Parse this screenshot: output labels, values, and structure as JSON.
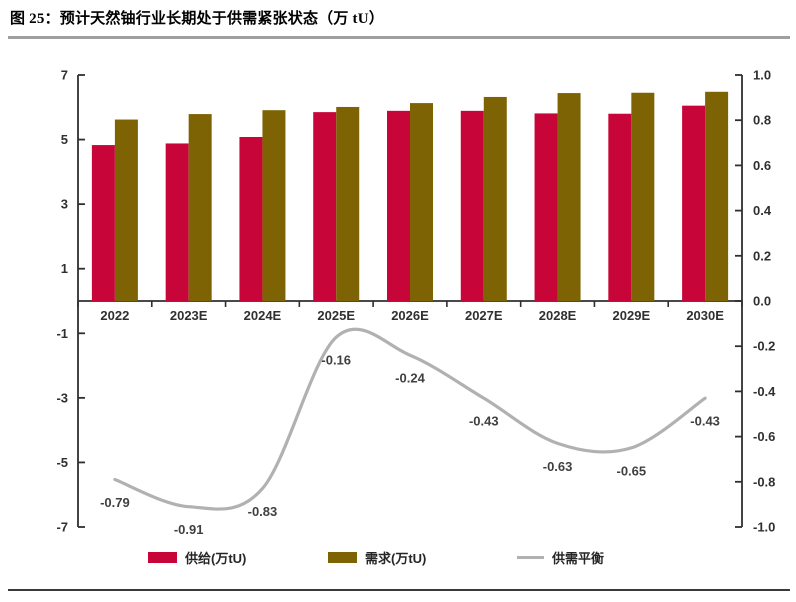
{
  "header": {
    "title": "图 25：预计天然铀行业长期处于供需紧张状态（万 tU）"
  },
  "chart_data": {
    "type": "combo-bar-line",
    "title": "预计天然铀行业长期处于供需紧张状态（万 tU）",
    "categories": [
      "2022",
      "2023E",
      "2024E",
      "2025E",
      "2026E",
      "2027E",
      "2028E",
      "2029E",
      "2030E"
    ],
    "series": [
      {
        "name": "供给(万tU)",
        "type": "bar",
        "axis": "left",
        "color": "#C80538",
        "values": [
          4.83,
          4.88,
          5.08,
          5.85,
          5.89,
          5.89,
          5.81,
          5.8,
          6.05
        ]
      },
      {
        "name": "需求(万tU)",
        "type": "bar",
        "axis": "left",
        "color": "#7D6304",
        "values": [
          5.62,
          5.79,
          5.91,
          6.01,
          6.13,
          6.32,
          6.44,
          6.45,
          6.48
        ]
      },
      {
        "name": "供需平衡",
        "type": "line",
        "axis": "right",
        "color": "#B1B1B1",
        "values": [
          -0.79,
          -0.91,
          -0.83,
          -0.16,
          -0.24,
          -0.43,
          -0.63,
          -0.65,
          -0.43
        ],
        "point_labels": [
          "-0.79",
          "-0.91",
          "-0.83",
          "-0.16",
          "-0.24",
          "-0.43",
          "-0.63",
          "-0.65",
          "-0.43"
        ]
      }
    ],
    "left_axis": {
      "min": -7,
      "max": 7,
      "tick_values": [
        7,
        5,
        3,
        1,
        -1,
        -3,
        -5,
        -7
      ],
      "tick_labels": [
        "7",
        "5",
        "3",
        "1",
        "-1",
        "-3",
        "-5",
        "-7"
      ]
    },
    "right_axis": {
      "min": -1,
      "max": 1,
      "tick_values": [
        1,
        0.8,
        0.6,
        0.4,
        0.2,
        0,
        -0.2,
        -0.4,
        -0.6,
        -0.8,
        -1
      ],
      "tick_labels": [
        "1.0",
        "0.8",
        "0.6",
        "0.4",
        "0.2",
        "0.0",
        "-0.2",
        "-0.4",
        "-0.6",
        "-0.8",
        "-1.0"
      ]
    },
    "legend_position": "bottom",
    "grid": false,
    "text_color": "#303030",
    "data_label_color": "#404040",
    "axis_line_color": "#2F2F2F"
  },
  "decor": {
    "top_rule_color": "#A0A0A0",
    "bottom_rule_color": "#3A3A3A"
  }
}
